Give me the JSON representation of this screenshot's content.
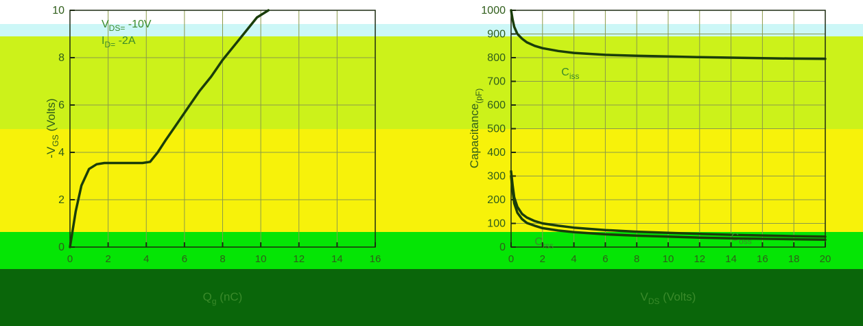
{
  "page": {
    "band_colors": {
      "cyan": "#ccf7f7",
      "lime": "#ccf21a",
      "yellow": "#f7f20a",
      "green": "#05e505",
      "dark_green": "#0a660a"
    }
  },
  "chart_data": [
    {
      "type": "line",
      "annotation_lines": [
        "V DS= -10V",
        "I D= -2A"
      ],
      "xlabel": "Q g (nC)",
      "ylabel": "-V GS (Volts)",
      "xlim": [
        0,
        16
      ],
      "ylim": [
        0,
        10
      ],
      "xticks": [
        "0",
        "2",
        "4",
        "6",
        "8",
        "10",
        "12",
        "14",
        "16"
      ],
      "yticks": [
        "0",
        "2",
        "4",
        "6",
        "8",
        "10"
      ],
      "grid": true,
      "line_color": "#1a3d0a",
      "series": [
        {
          "x": [
            0.0,
            0.3,
            0.6,
            1.0,
            1.4,
            1.8,
            2.2,
            2.6,
            3.0,
            3.4,
            3.8,
            4.2,
            4.6,
            5.0,
            5.6,
            6.2,
            6.8,
            7.4,
            8.0,
            8.6,
            9.2,
            9.8,
            10.4
          ],
          "y": [
            0.0,
            1.5,
            2.6,
            3.3,
            3.5,
            3.55,
            3.55,
            3.55,
            3.55,
            3.55,
            3.55,
            3.6,
            4.0,
            4.5,
            5.2,
            5.9,
            6.6,
            7.2,
            7.9,
            8.5,
            9.1,
            9.7,
            10.0
          ]
        }
      ]
    },
    {
      "type": "line",
      "xlabel": "V DS (Volts)",
      "ylabel": "Capacitance (pF)",
      "xlim": [
        0,
        20
      ],
      "ylim": [
        0,
        1000
      ],
      "xticks": [
        "0",
        "2",
        "4",
        "6",
        "8",
        "10",
        "12",
        "14",
        "16",
        "18",
        "20"
      ],
      "yticks": [
        "0",
        "100",
        "200",
        "300",
        "400",
        "500",
        "600",
        "700",
        "800",
        "900",
        "1000"
      ],
      "grid": true,
      "line_color": "#1a3d0a",
      "series": [
        {
          "name": "C iss",
          "x": [
            0.0,
            0.1,
            0.2,
            0.4,
            0.7,
            1.0,
            1.5,
            2.0,
            3.0,
            4.0,
            6.0,
            8.0,
            10.0,
            12.0,
            14.0,
            16.0,
            18.0,
            20.0
          ],
          "y": [
            1000,
            960,
            930,
            900,
            880,
            865,
            850,
            840,
            828,
            820,
            812,
            808,
            805,
            802,
            800,
            798,
            796,
            795
          ]
        },
        {
          "name": "C oss",
          "x": [
            0.0,
            0.1,
            0.2,
            0.4,
            0.7,
            1.0,
            1.5,
            2.0,
            3.0,
            4.0,
            6.0,
            8.0,
            10.0,
            12.0,
            14.0,
            16.0,
            18.0,
            20.0
          ],
          "y": [
            320,
            260,
            210,
            170,
            140,
            125,
            110,
            100,
            90,
            82,
            72,
            65,
            60,
            56,
            52,
            49,
            46,
            44
          ]
        },
        {
          "name": "C rss",
          "x": [
            0.0,
            0.1,
            0.2,
            0.4,
            0.7,
            1.0,
            1.5,
            2.0,
            3.0,
            4.0,
            6.0,
            8.0,
            10.0,
            12.0,
            14.0,
            16.0,
            18.0,
            20.0
          ],
          "y": [
            300,
            235,
            185,
            145,
            118,
            102,
            90,
            80,
            70,
            63,
            54,
            48,
            44,
            40,
            37,
            35,
            33,
            31
          ]
        }
      ]
    }
  ]
}
